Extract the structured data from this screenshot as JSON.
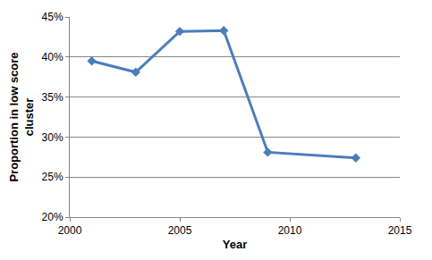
{
  "chart_data": {
    "type": "line",
    "x_label": "Year",
    "y_label": "Proportion in low score cluster",
    "x": [
      2001,
      2003,
      2005,
      2007,
      2009,
      2013
    ],
    "values": [
      39.5,
      38.1,
      43.2,
      43.3,
      28.1,
      27.4
    ],
    "color": "#4a7ebb",
    "marker": "diamond",
    "xlim": [
      2000,
      2015
    ],
    "xticks": [
      2000,
      2005,
      2010,
      2015
    ],
    "ylim": [
      20,
      45
    ],
    "yticks": [
      {
        "value": 20,
        "label": "20%"
      },
      {
        "value": 25,
        "label": "25%"
      },
      {
        "value": 30,
        "label": "30%"
      },
      {
        "value": 35,
        "label": "35%"
      },
      {
        "value": 40,
        "label": "40%"
      },
      {
        "value": 45,
        "label": "45%"
      }
    ],
    "grid": true
  }
}
